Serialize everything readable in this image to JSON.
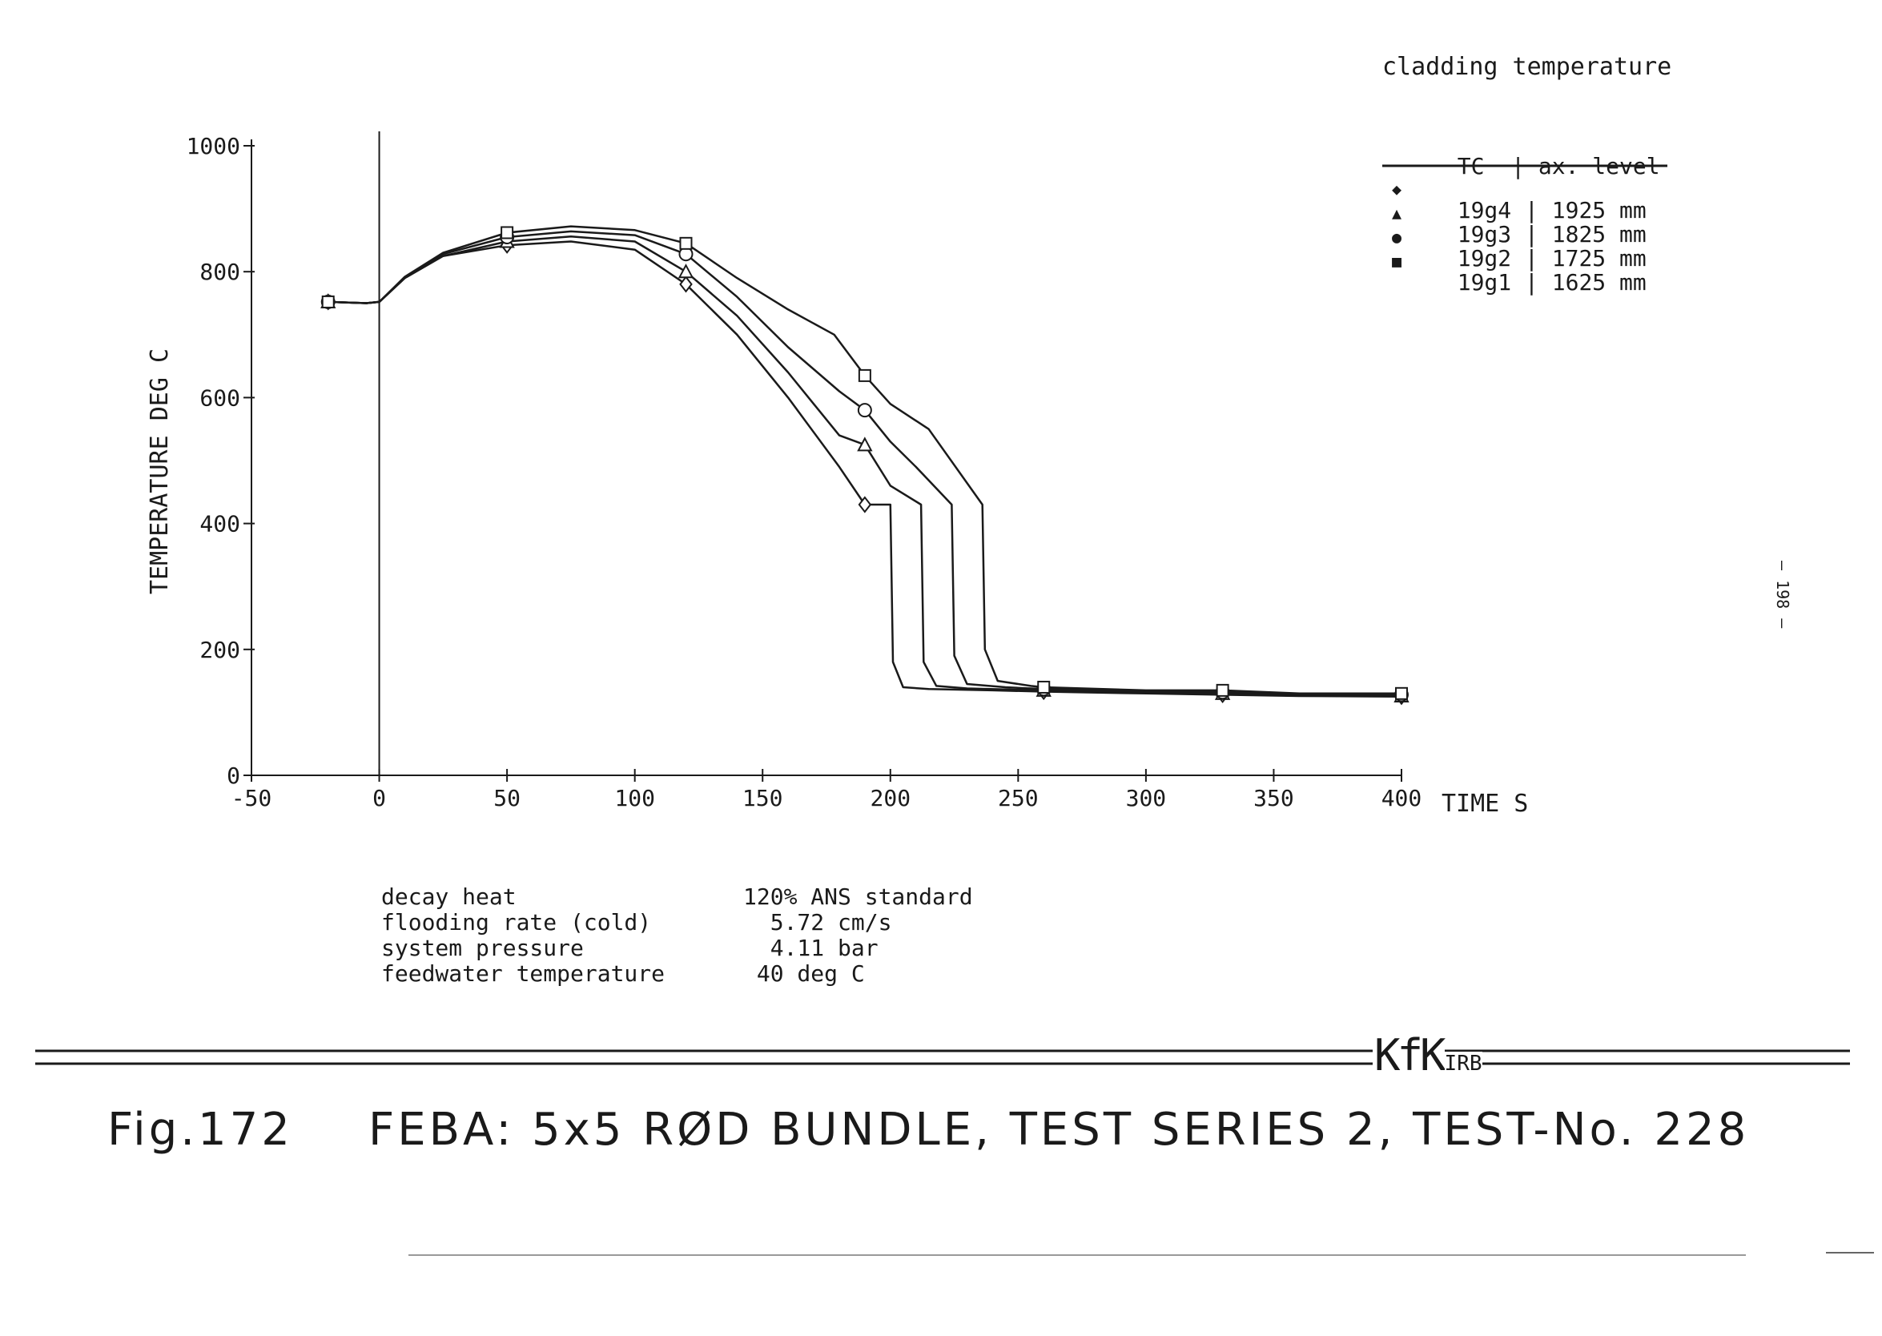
{
  "chart_data": {
    "type": "line",
    "title": "cladding temperature",
    "xlabel": "TIME S",
    "ylabel": "TEMPERATURE DEG C",
    "xlim": [
      -50,
      400
    ],
    "ylim": [
      0,
      1000
    ],
    "xticks": [
      -50,
      0,
      50,
      100,
      150,
      200,
      250,
      300,
      350,
      400
    ],
    "yticks": [
      0,
      200,
      400,
      600,
      800,
      1000
    ],
    "xtick_labels": [
      "-50",
      "0",
      "50",
      "100",
      "150",
      "200",
      "250",
      "300",
      "350",
      "400"
    ],
    "ytick_labels": [
      "0",
      "200",
      "400",
      "600",
      "800",
      "1000"
    ],
    "legend_placement": "top-right",
    "legend_header": {
      "tc": "TC",
      "level": "ax. level"
    },
    "series": [
      {
        "name": "19g4",
        "level": "1925 mm",
        "marker": "diamond",
        "marker_glyph": "◆",
        "x": [
          -20,
          -5,
          0,
          10,
          25,
          50,
          75,
          100,
          120,
          140,
          160,
          180,
          190,
          200,
          201,
          205,
          215,
          240,
          260,
          300,
          330,
          360,
          400
        ],
        "y": [
          752,
          750,
          752,
          790,
          825,
          842,
          848,
          835,
          780,
          700,
          600,
          490,
          430,
          430,
          180,
          140,
          137,
          135,
          133,
          130,
          128,
          126,
          125
        ]
      },
      {
        "name": "19g3",
        "level": "1825 mm",
        "marker": "triangle",
        "marker_glyph": "▲",
        "x": [
          -20,
          -5,
          0,
          10,
          25,
          50,
          75,
          100,
          120,
          140,
          160,
          180,
          190,
          200,
          212,
          213,
          218,
          230,
          260,
          300,
          330,
          360,
          400
        ],
        "y": [
          752,
          750,
          752,
          790,
          825,
          848,
          856,
          848,
          800,
          730,
          640,
          540,
          525,
          460,
          430,
          180,
          142,
          138,
          135,
          132,
          130,
          127,
          126
        ]
      },
      {
        "name": "19g2",
        "level": "1725 mm",
        "marker": "circle",
        "marker_glyph": "●",
        "x": [
          -20,
          -5,
          0,
          10,
          25,
          50,
          75,
          100,
          120,
          140,
          160,
          180,
          190,
          200,
          210,
          224,
          225,
          230,
          245,
          260,
          300,
          330,
          360,
          400
        ],
        "y": [
          752,
          750,
          752,
          790,
          828,
          855,
          864,
          858,
          828,
          760,
          680,
          610,
          580,
          530,
          490,
          430,
          190,
          145,
          140,
          137,
          134,
          132,
          128,
          128
        ]
      },
      {
        "name": "19g1",
        "level": "1625 mm",
        "marker": "square",
        "marker_glyph": "■",
        "x": [
          -20,
          -5,
          0,
          10,
          25,
          50,
          75,
          100,
          120,
          140,
          160,
          178,
          190,
          200,
          215,
          236,
          237,
          242,
          255,
          260,
          300,
          330,
          360,
          400
        ],
        "y": [
          752,
          750,
          752,
          792,
          830,
          862,
          872,
          866,
          845,
          790,
          740,
          700,
          635,
          590,
          550,
          430,
          200,
          150,
          142,
          140,
          135,
          135,
          130,
          130
        ]
      }
    ]
  },
  "params": [
    {
      "label": "decay heat",
      "value": "120% ANS standard"
    },
    {
      "label": "flooding rate (cold)",
      "value": "  5.72 cm/s"
    },
    {
      "label": "system pressure",
      "value": "  4.11 bar"
    },
    {
      "label": "feedwater temperature",
      "value": " 40 deg C"
    }
  ],
  "caption": {
    "fig": "Fig.172",
    "text": "FEBA: 5x5 RØD BUNDLE, TEST SERIES 2, TEST-No. 228"
  },
  "logo": {
    "text": "KfK",
    "sub": "IRB"
  },
  "page_number": "— 198 —"
}
